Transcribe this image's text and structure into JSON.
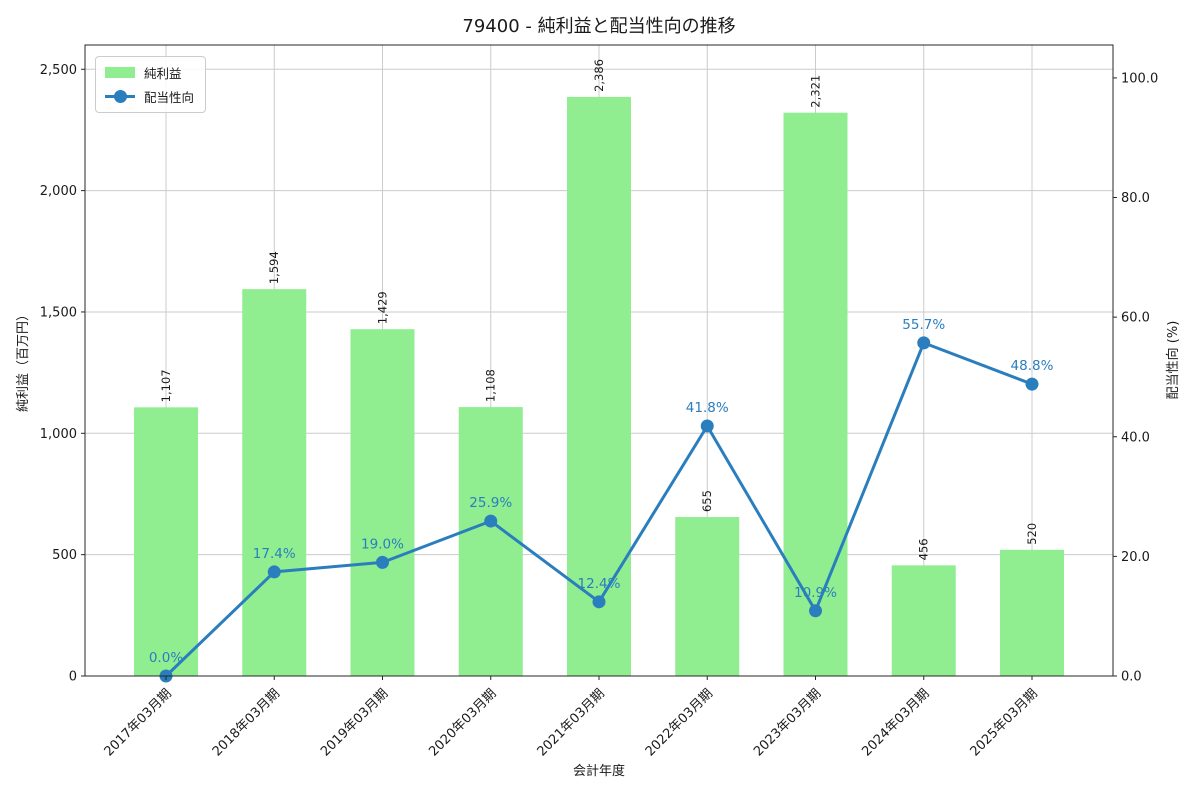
{
  "title": "79400 - 純利益と配当性向の推移",
  "axes": {
    "xlabel": "会計年度",
    "ylabel_left": "純利益（百万円）",
    "ylabel_right": "配当性向 (%)"
  },
  "chart_data": {
    "type": "bar",
    "subtype": "combo-bar-line-dual-axis",
    "categories": [
      "2017年03月期",
      "2018年03月期",
      "2019年03月期",
      "2020年03月期",
      "2021年03月期",
      "2022年03月期",
      "2023年03月期",
      "2024年03月期",
      "2025年03月期"
    ],
    "series": [
      {
        "name": "純利益",
        "type": "bar",
        "axis": "left",
        "color": "#90ee90",
        "values": [
          1107,
          1594,
          1429,
          1108,
          2386,
          655,
          2321,
          456,
          520
        ],
        "labels": [
          "1,107",
          "1,594",
          "1,429",
          "1,108",
          "2,386",
          "655",
          "2,321",
          "456",
          "520"
        ]
      },
      {
        "name": "配当性向",
        "type": "line",
        "axis": "right",
        "color": "#2b7ebe",
        "values": [
          0.0,
          17.4,
          19.0,
          25.9,
          12.4,
          41.8,
          10.9,
          55.7,
          48.8
        ],
        "labels": [
          "0.0%",
          "17.4%",
          "19.0%",
          "25.9%",
          "12.4%",
          "41.8%",
          "10.9%",
          "55.7%",
          "48.8%"
        ]
      }
    ],
    "left_ticks": [
      "0",
      "500",
      "1,000",
      "1,500",
      "2,000",
      "2,500"
    ],
    "left_tick_values": [
      0,
      500,
      1000,
      1500,
      2000,
      2500
    ],
    "right_ticks": [
      "0.0",
      "20.0",
      "40.0",
      "60.0",
      "80.0",
      "100.0"
    ],
    "right_tick_values": [
      0,
      20,
      40,
      60,
      80,
      100
    ],
    "ylim_left": [
      0,
      2600
    ],
    "ylim_right": [
      0,
      105.5
    ],
    "grid": true,
    "grid_color": "#cccccc",
    "spine_color": "#262626",
    "text_color": "#1a1a1a",
    "legend_position": "upper-left"
  }
}
